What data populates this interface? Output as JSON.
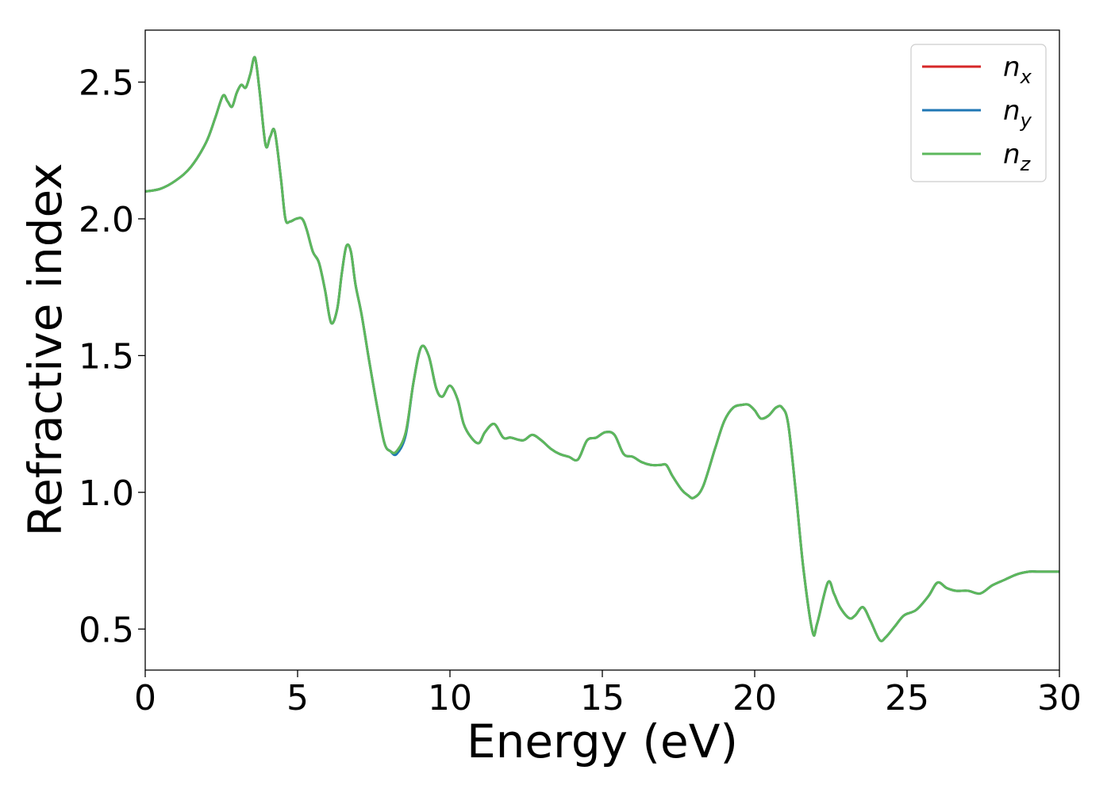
{
  "chart_data": {
    "type": "line",
    "title": "",
    "xlabel": "Energy (eV)",
    "ylabel": "Refractive index",
    "xlim": [
      0,
      30
    ],
    "ylim": [
      0.35,
      2.69
    ],
    "x_ticks": [
      0,
      5,
      10,
      15,
      20,
      25,
      30
    ],
    "x_tick_labels": [
      "0",
      "5",
      "10",
      "15",
      "20",
      "25",
      "30"
    ],
    "y_ticks": [
      0.5,
      1.0,
      1.5,
      2.0,
      2.5
    ],
    "y_tick_labels": [
      "0.5",
      "1.0",
      "1.5",
      "2.0",
      "2.5"
    ],
    "grid": false,
    "legend_position": "top-right",
    "x": [
      0,
      0.5,
      1.0,
      1.5,
      2.0,
      2.3,
      2.55,
      2.7,
      2.85,
      3.0,
      3.15,
      3.3,
      3.45,
      3.6,
      3.75,
      3.95,
      4.1,
      4.25,
      4.45,
      4.6,
      4.75,
      4.95,
      5.15,
      5.3,
      5.5,
      5.7,
      5.9,
      6.1,
      6.3,
      6.45,
      6.6,
      6.75,
      6.9,
      7.1,
      7.35,
      7.6,
      7.85,
      8.05,
      8.25,
      8.55,
      8.8,
      9.05,
      9.3,
      9.55,
      9.75,
      10.0,
      10.25,
      10.45,
      10.7,
      10.95,
      11.15,
      11.45,
      11.75,
      12.0,
      12.4,
      12.7,
      13.0,
      13.3,
      13.6,
      13.9,
      14.2,
      14.5,
      14.8,
      15.1,
      15.4,
      15.7,
      16.0,
      16.3,
      16.6,
      16.9,
      17.1,
      17.3,
      17.6,
      17.8,
      18.0,
      18.3,
      18.7,
      19.0,
      19.3,
      19.6,
      19.8,
      20.0,
      20.2,
      20.45,
      20.7,
      20.9,
      21.1,
      21.35,
      21.6,
      21.9,
      22.05,
      22.4,
      22.6,
      22.8,
      23.1,
      23.3,
      23.55,
      23.8,
      24.1,
      24.3,
      24.6,
      24.9,
      25.3,
      25.7,
      26.0,
      26.3,
      26.6,
      27.0,
      27.4,
      27.8,
      28.2,
      28.6,
      29.0,
      29.3,
      29.6,
      30.0
    ],
    "series": [
      {
        "name": "n_x",
        "color": "#d62728",
        "values": [
          2.1,
          2.11,
          2.14,
          2.19,
          2.28,
          2.37,
          2.45,
          2.43,
          2.41,
          2.46,
          2.49,
          2.48,
          2.53,
          2.59,
          2.47,
          2.27,
          2.3,
          2.32,
          2.15,
          2.0,
          1.99,
          2.0,
          2.0,
          1.96,
          1.88,
          1.84,
          1.74,
          1.62,
          1.67,
          1.8,
          1.9,
          1.88,
          1.76,
          1.65,
          1.48,
          1.32,
          1.18,
          1.15,
          1.15,
          1.22,
          1.4,
          1.53,
          1.5,
          1.38,
          1.35,
          1.39,
          1.34,
          1.25,
          1.2,
          1.18,
          1.22,
          1.25,
          1.2,
          1.2,
          1.19,
          1.21,
          1.19,
          1.16,
          1.14,
          1.13,
          1.12,
          1.19,
          1.2,
          1.22,
          1.21,
          1.14,
          1.13,
          1.11,
          1.1,
          1.1,
          1.1,
          1.06,
          1.01,
          0.99,
          0.98,
          1.02,
          1.16,
          1.26,
          1.31,
          1.32,
          1.32,
          1.3,
          1.27,
          1.28,
          1.31,
          1.31,
          1.25,
          1.0,
          0.72,
          0.49,
          0.52,
          0.67,
          0.63,
          0.58,
          0.54,
          0.55,
          0.58,
          0.53,
          0.46,
          0.47,
          0.51,
          0.55,
          0.57,
          0.62,
          0.67,
          0.65,
          0.64,
          0.64,
          0.63,
          0.66,
          0.68,
          0.7,
          0.71,
          0.71,
          0.71,
          0.71
        ]
      },
      {
        "name": "n_y",
        "color": "#1f77b4",
        "values": [
          2.1,
          2.11,
          2.14,
          2.19,
          2.28,
          2.37,
          2.45,
          2.43,
          2.41,
          2.46,
          2.49,
          2.48,
          2.53,
          2.59,
          2.47,
          2.27,
          2.3,
          2.32,
          2.15,
          2.0,
          1.99,
          2.0,
          2.0,
          1.96,
          1.88,
          1.84,
          1.74,
          1.62,
          1.67,
          1.8,
          1.9,
          1.88,
          1.76,
          1.65,
          1.48,
          1.32,
          1.18,
          1.15,
          1.14,
          1.21,
          1.4,
          1.53,
          1.5,
          1.38,
          1.35,
          1.39,
          1.34,
          1.25,
          1.2,
          1.18,
          1.22,
          1.25,
          1.2,
          1.2,
          1.19,
          1.21,
          1.19,
          1.16,
          1.14,
          1.13,
          1.12,
          1.19,
          1.2,
          1.22,
          1.21,
          1.14,
          1.13,
          1.11,
          1.1,
          1.1,
          1.1,
          1.06,
          1.01,
          0.99,
          0.98,
          1.02,
          1.16,
          1.26,
          1.31,
          1.32,
          1.32,
          1.3,
          1.27,
          1.28,
          1.31,
          1.31,
          1.25,
          1.0,
          0.72,
          0.49,
          0.52,
          0.67,
          0.63,
          0.58,
          0.54,
          0.55,
          0.58,
          0.53,
          0.46,
          0.47,
          0.51,
          0.55,
          0.57,
          0.62,
          0.67,
          0.65,
          0.64,
          0.64,
          0.63,
          0.66,
          0.68,
          0.7,
          0.71,
          0.71,
          0.71,
          0.71
        ]
      },
      {
        "name": "n_z",
        "color": "#5cb85c",
        "values": [
          2.1,
          2.11,
          2.14,
          2.19,
          2.28,
          2.37,
          2.45,
          2.43,
          2.41,
          2.46,
          2.49,
          2.48,
          2.53,
          2.59,
          2.47,
          2.27,
          2.3,
          2.32,
          2.15,
          2.0,
          1.99,
          2.0,
          2.0,
          1.96,
          1.88,
          1.84,
          1.74,
          1.62,
          1.67,
          1.8,
          1.9,
          1.88,
          1.76,
          1.65,
          1.48,
          1.32,
          1.18,
          1.15,
          1.15,
          1.22,
          1.4,
          1.53,
          1.5,
          1.38,
          1.35,
          1.39,
          1.34,
          1.25,
          1.2,
          1.18,
          1.22,
          1.25,
          1.2,
          1.2,
          1.19,
          1.21,
          1.19,
          1.16,
          1.14,
          1.13,
          1.12,
          1.19,
          1.2,
          1.22,
          1.21,
          1.14,
          1.13,
          1.11,
          1.1,
          1.1,
          1.1,
          1.06,
          1.01,
          0.99,
          0.98,
          1.02,
          1.16,
          1.26,
          1.31,
          1.32,
          1.32,
          1.3,
          1.27,
          1.28,
          1.31,
          1.31,
          1.25,
          1.0,
          0.72,
          0.49,
          0.52,
          0.67,
          0.63,
          0.58,
          0.54,
          0.55,
          0.58,
          0.53,
          0.46,
          0.47,
          0.51,
          0.55,
          0.57,
          0.62,
          0.67,
          0.65,
          0.64,
          0.64,
          0.63,
          0.66,
          0.68,
          0.7,
          0.71,
          0.71,
          0.71,
          0.71
        ]
      }
    ],
    "legend": [
      {
        "base": "n",
        "sub": "x"
      },
      {
        "base": "n",
        "sub": "y"
      },
      {
        "base": "n",
        "sub": "z"
      }
    ]
  }
}
